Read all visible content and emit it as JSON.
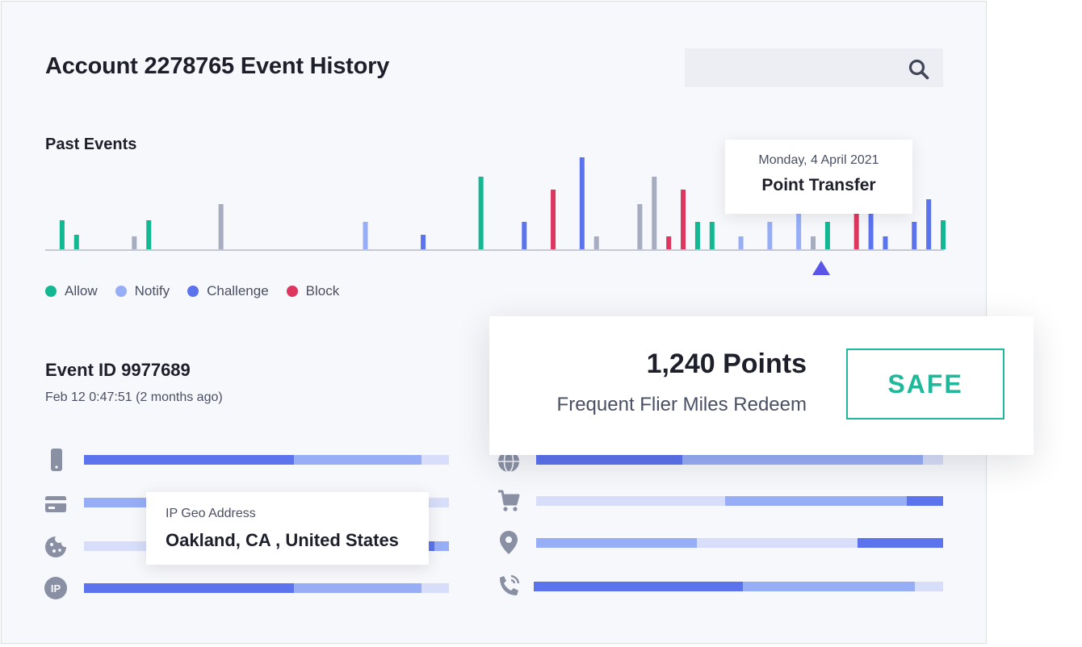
{
  "header": {
    "title": "Account 2278765 Event History"
  },
  "search": {
    "placeholder": ""
  },
  "past_events": {
    "title": "Past Events",
    "tooltip": {
      "date": "Monday, 4 April 2021",
      "event": "Point Transfer"
    }
  },
  "legend": [
    {
      "label": "Allow",
      "color": "#13b893"
    },
    {
      "label": "Notify",
      "color": "#97aef7"
    },
    {
      "label": "Challenge",
      "color": "#5c73ee"
    },
    {
      "label": "Block",
      "color": "#dd3760"
    }
  ],
  "chart_data": {
    "type": "bar",
    "title": "Past Events",
    "colors": {
      "allow": "#13b893",
      "notify": "#97aef7",
      "challenge": "#5c73ee",
      "block": "#dd3760",
      "neutral": "#a6adc0"
    },
    "series": [
      {
        "x": 1,
        "value": 36,
        "category": "allow"
      },
      {
        "x": 2,
        "value": 18,
        "category": "allow"
      },
      {
        "x": 6,
        "value": 16,
        "category": "neutral"
      },
      {
        "x": 7,
        "value": 36,
        "category": "allow"
      },
      {
        "x": 12,
        "value": 56,
        "category": "neutral"
      },
      {
        "x": 22,
        "value": 34,
        "category": "notify"
      },
      {
        "x": 26,
        "value": 18,
        "category": "challenge"
      },
      {
        "x": 30,
        "value": 90,
        "category": "allow"
      },
      {
        "x": 33,
        "value": 34,
        "category": "challenge"
      },
      {
        "x": 35,
        "value": 74,
        "category": "block"
      },
      {
        "x": 37,
        "value": 114,
        "category": "challenge"
      },
      {
        "x": 38,
        "value": 16,
        "category": "neutral"
      },
      {
        "x": 41,
        "value": 56,
        "category": "neutral"
      },
      {
        "x": 42,
        "value": 90,
        "category": "neutral"
      },
      {
        "x": 43,
        "value": 16,
        "category": "block"
      },
      {
        "x": 44,
        "value": 74,
        "category": "block"
      },
      {
        "x": 45,
        "value": 34,
        "category": "allow"
      },
      {
        "x": 46,
        "value": 34,
        "category": "allow"
      },
      {
        "x": 48,
        "value": 16,
        "category": "notify"
      },
      {
        "x": 50,
        "value": 34,
        "category": "notify"
      },
      {
        "x": 52,
        "value": 44,
        "category": "notify"
      },
      {
        "x": 53,
        "value": 16,
        "category": "neutral"
      },
      {
        "x": 54,
        "value": 34,
        "category": "allow"
      },
      {
        "x": 56,
        "value": 44,
        "category": "block"
      },
      {
        "x": 57,
        "value": 44,
        "category": "challenge"
      },
      {
        "x": 58,
        "value": 16,
        "category": "challenge"
      },
      {
        "x": 60,
        "value": 34,
        "category": "challenge"
      },
      {
        "x": 61,
        "value": 62,
        "category": "challenge"
      },
      {
        "x": 62,
        "value": 36,
        "category": "allow"
      }
    ],
    "x_range": [
      0,
      62
    ],
    "y_range": [
      0,
      120
    ],
    "selected_x": 54
  },
  "event": {
    "id": "Event ID 9977689",
    "time": "Feb 12 0:47:51 (2 months ago)"
  },
  "ip_geo": {
    "label": "IP Geo Address",
    "value": "Oakland, CA , United States"
  },
  "points_card": {
    "points": "1,240 Points",
    "program": "Frequent Flier Miles Redeem",
    "status": "SAFE",
    "status_color": "#1fb89b"
  },
  "signals": {
    "palette": {
      "dark": "#5c73ee",
      "mid": "#97aef7",
      "light": "#d8def9"
    },
    "left": [
      {
        "icon": "phone-icon",
        "segments": [
          [
            "dark",
            0.575
          ],
          [
            "mid",
            0.35
          ],
          [
            "light",
            0.075
          ]
        ]
      },
      {
        "icon": "credit-card-icon",
        "segments": [
          [
            "mid",
            0.17
          ],
          [
            "light",
            0.83
          ]
        ]
      },
      {
        "icon": "cookie-icon",
        "segments": [
          [
            "light",
            0.94
          ],
          [
            "dark",
            0.02
          ],
          [
            "mid",
            0.04
          ]
        ]
      },
      {
        "icon": "ip-icon",
        "segments": [
          [
            "dark",
            0.575
          ],
          [
            "mid",
            0.35
          ],
          [
            "light",
            0.075
          ]
        ]
      }
    ],
    "right": [
      {
        "icon": "globe-icon",
        "segments": [
          [
            "dark",
            0.36
          ],
          [
            "mid",
            0.59
          ],
          [
            "light",
            0.05
          ]
        ]
      },
      {
        "icon": "cart-icon",
        "segments": [
          [
            "light",
            0.465
          ],
          [
            "mid",
            0.445
          ],
          [
            "dark",
            0.09
          ]
        ]
      },
      {
        "icon": "location-pin-icon",
        "segments": [
          [
            "mid",
            0.395
          ],
          [
            "light",
            0.395
          ],
          [
            "dark",
            0.21
          ]
        ]
      },
      {
        "icon": "phone-call-icon",
        "segments": [
          [
            "dark",
            0.51
          ],
          [
            "mid",
            0.42
          ],
          [
            "light",
            0.07
          ]
        ]
      }
    ]
  }
}
